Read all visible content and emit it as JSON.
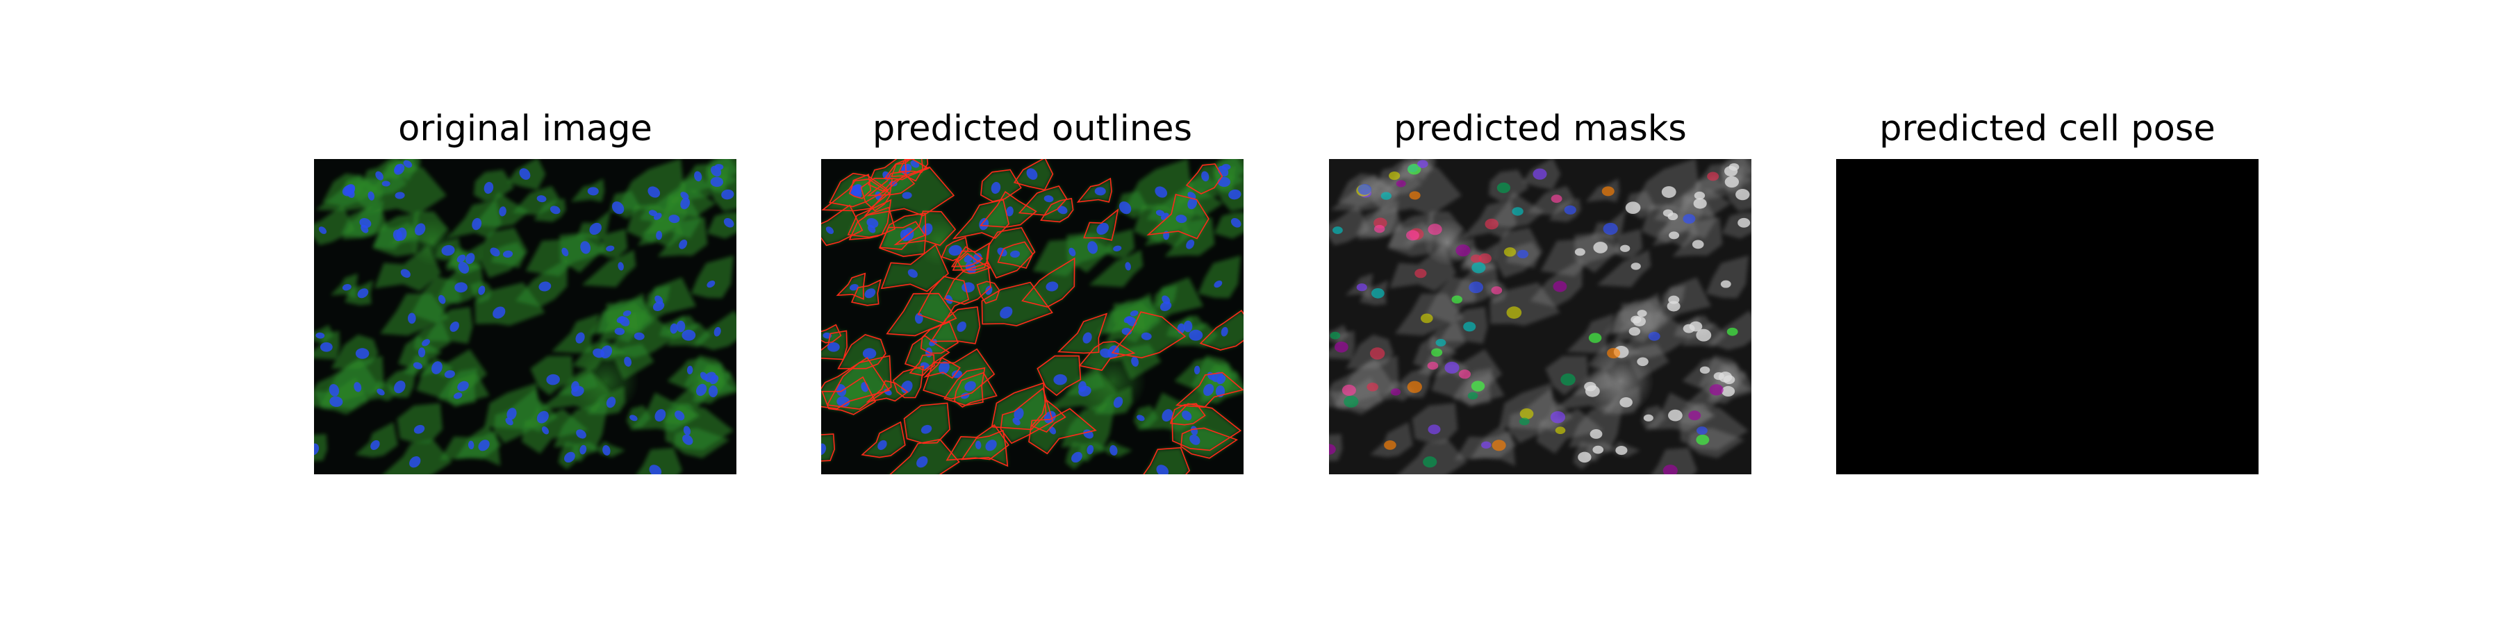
{
  "panels": {
    "original": {
      "title": "original image"
    },
    "outlines": {
      "title": "predicted outlines",
      "outline_color": "#ff2a1a"
    },
    "masks": {
      "title": "predicted masks"
    },
    "pose": {
      "title": "predicted cell pose"
    }
  },
  "colors": {
    "cytoplasm_green": "#2e8b2a",
    "nucleus_blue": "#2a4cf0",
    "background": "#050807",
    "mask_palette": [
      "#a000a0",
      "#00a050",
      "#3050ff",
      "#d0d000",
      "#e03050",
      "#00c0c0",
      "#ff8000",
      "#8040ff",
      "#40ff40",
      "#ff40a0"
    ]
  }
}
